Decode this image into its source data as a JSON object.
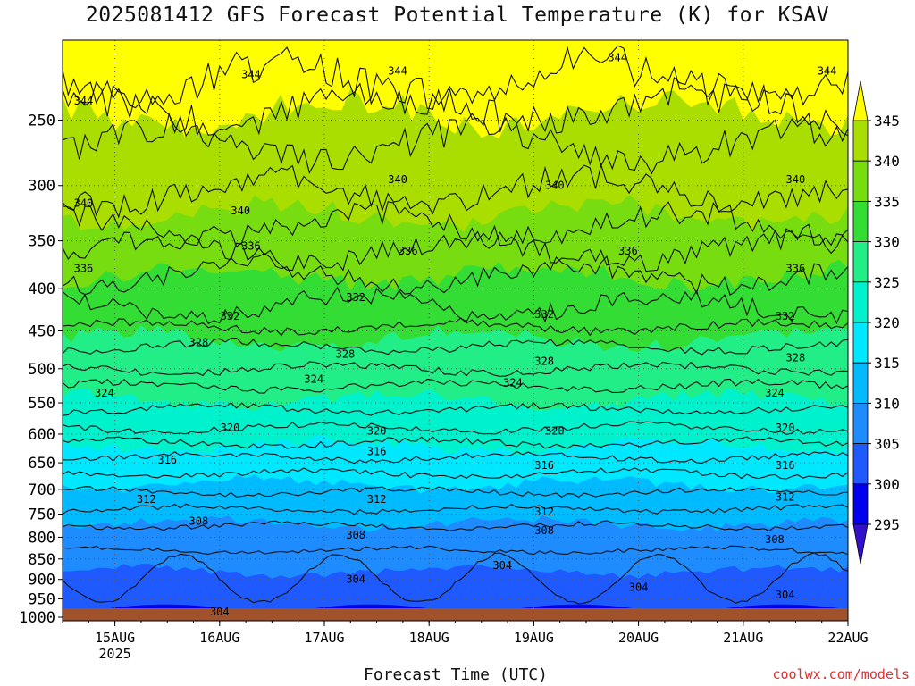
{
  "title": "2025081412 GFS Forecast Potential Temperature (K) for KSAV",
  "xlabel": "Forecast Time (UTC)",
  "credit": "coolwx.com/models",
  "colors": {
    "ground": "#a0522d",
    "contour": "#111111",
    "grid": "#555555"
  },
  "chart_data": {
    "type": "heatmap",
    "title": "2025081412 GFS Forecast Potential Temperature (K) for KSAV",
    "xlabel": "Forecast Time (UTC)",
    "ylabel": "",
    "x_ticks": [
      {
        "label": "15AUG",
        "sub": "2025"
      },
      {
        "label": "16AUG",
        "sub": ""
      },
      {
        "label": "17AUG",
        "sub": ""
      },
      {
        "label": "18AUG",
        "sub": ""
      },
      {
        "label": "19AUG",
        "sub": ""
      },
      {
        "label": "20AUG",
        "sub": ""
      },
      {
        "label": "21AUG",
        "sub": ""
      },
      {
        "label": "22AUG",
        "sub": ""
      }
    ],
    "x_range_days": [
      14.5,
      22.0
    ],
    "y_ticks": [
      250,
      300,
      350,
      400,
      450,
      500,
      550,
      600,
      650,
      700,
      750,
      800,
      850,
      900,
      950,
      1000
    ],
    "y_scale": "log-pressure",
    "y_range_hpa": [
      200,
      1010
    ],
    "grid": true,
    "colorbar": {
      "ticks": [
        345,
        340,
        335,
        330,
        325,
        320,
        315,
        310,
        305,
        300,
        295
      ],
      "bands": [
        {
          "min": 340,
          "max": 345,
          "color": "#aadd00"
        },
        {
          "min": 335,
          "max": 340,
          "color": "#77dd11"
        },
        {
          "min": 330,
          "max": 335,
          "color": "#33dd33"
        },
        {
          "min": 325,
          "max": 330,
          "color": "#22ee88"
        },
        {
          "min": 320,
          "max": 325,
          "color": "#00f2cc"
        },
        {
          "min": 315,
          "max": 320,
          "color": "#00e8ff"
        },
        {
          "min": 310,
          "max": 315,
          "color": "#00bbff"
        },
        {
          "min": 305,
          "max": 310,
          "color": "#1e8cff"
        },
        {
          "min": 300,
          "max": 305,
          "color": "#1e5aff"
        },
        {
          "min": 295,
          "max": 300,
          "color": "#0000ee"
        }
      ],
      "over_color": "#ffff00",
      "under_color": "#3311cc"
    },
    "contour_levels_labeled": [
      344,
      340,
      336,
      332,
      328,
      324,
      320,
      316,
      312,
      308,
      304
    ],
    "series": [
      {
        "level": 344,
        "x": [
          14.7,
          16.3,
          17.7,
          19.8,
          21.8
        ],
        "y_hpa": [
          237,
          220,
          218,
          210,
          218
        ]
      },
      {
        "level": 340,
        "x": [
          14.7,
          16.2,
          17.7,
          19.2,
          21.5
        ],
        "y_hpa": [
          315,
          322,
          295,
          300,
          295
        ]
      },
      {
        "level": 336,
        "x": [
          14.7,
          16.3,
          17.8,
          19.9,
          21.5
        ],
        "y_hpa": [
          378,
          355,
          360,
          360,
          378
        ]
      },
      {
        "level": 332,
        "x": [
          16.1,
          17.3,
          19.1,
          21.4
        ],
        "y_hpa": [
          432,
          410,
          430,
          432
        ]
      },
      {
        "level": 328,
        "x": [
          15.8,
          17.2,
          19.1,
          21.5
        ],
        "y_hpa": [
          465,
          480,
          490,
          485
        ]
      },
      {
        "level": 324,
        "x": [
          14.9,
          16.9,
          18.8,
          21.3
        ],
        "y_hpa": [
          535,
          515,
          520,
          535
        ]
      },
      {
        "level": 320,
        "x": [
          16.1,
          17.5,
          19.2,
          21.4
        ],
        "y_hpa": [
          590,
          595,
          595,
          590
        ]
      },
      {
        "level": 316,
        "x": [
          15.5,
          17.5,
          19.1,
          21.4
        ],
        "y_hpa": [
          645,
          630,
          655,
          655
        ]
      },
      {
        "level": 312,
        "x": [
          15.3,
          17.5,
          19.1,
          21.4
        ],
        "y_hpa": [
          720,
          720,
          745,
          715
        ]
      },
      {
        "level": 308,
        "x": [
          15.8,
          17.3,
          19.1,
          21.3
        ],
        "y_hpa": [
          765,
          795,
          785,
          805
        ]
      },
      {
        "level": 304,
        "x": [
          16.0,
          17.3,
          18.7,
          20.0,
          21.4
        ],
        "y_hpa": [
          985,
          900,
          865,
          920,
          940
        ]
      }
    ]
  }
}
